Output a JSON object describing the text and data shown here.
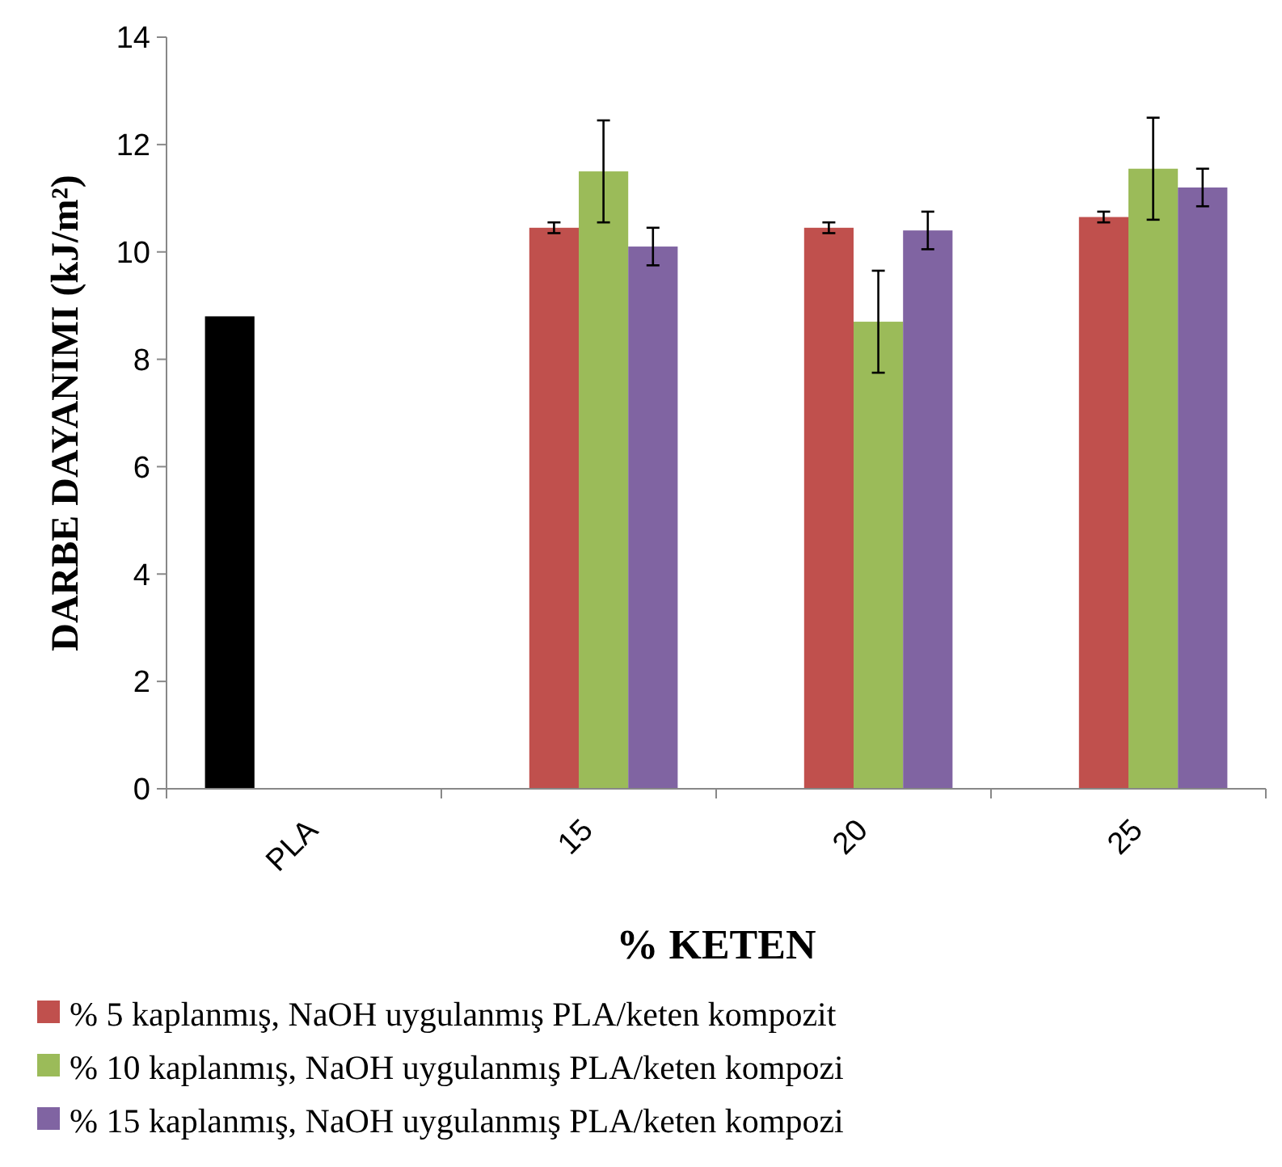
{
  "chart_data": {
    "type": "bar",
    "xlabel": "% KETEN",
    "ylabel": "DARBE DAYANIMI (kJ/m²)",
    "categories": [
      "PLA",
      "15",
      "20",
      "25"
    ],
    "series": [
      {
        "color": "#000000",
        "values": [
          8.8,
          null,
          null,
          null
        ]
      },
      {
        "name": "% 5 kaplanmış, NaOH uygulanmış PLA/keten kompozit",
        "color": "#c0504d",
        "values": [
          null,
          10.45,
          10.45,
          10.65
        ],
        "errors": [
          null,
          0.1,
          0.1,
          0.1
        ]
      },
      {
        "name": "% 10 kaplanmış, NaOH uygulanmış PLA/keten kompozi",
        "color": "#9bbb59",
        "values": [
          null,
          11.5,
          8.7,
          11.55
        ],
        "errors": [
          null,
          0.95,
          0.95,
          0.95
        ]
      },
      {
        "name": "% 15 kaplanmış, NaOH uygulanmış PLA/keten kompozi",
        "color": "#8064a2",
        "values": [
          null,
          10.1,
          10.4,
          11.2
        ],
        "errors": [
          null,
          0.35,
          0.35,
          0.35
        ]
      }
    ],
    "ylim": [
      0,
      14
    ],
    "yticks": [
      0,
      2,
      4,
      6,
      8,
      10,
      12,
      14
    ],
    "grid": false,
    "legend": "bottom"
  }
}
